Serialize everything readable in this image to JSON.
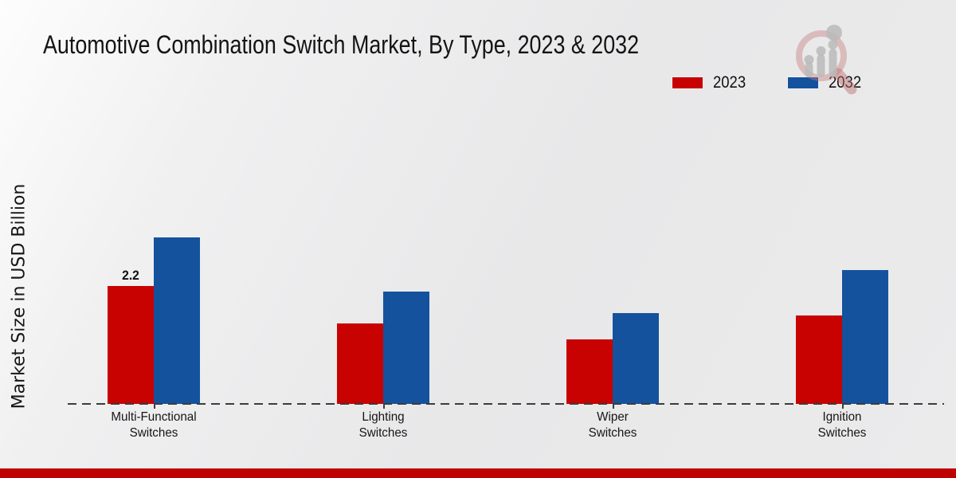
{
  "header": {
    "title": "Automotive Combination Switch Market, By Type, 2023 & 2032"
  },
  "axis": {
    "y_label": "Market Size in USD Billion"
  },
  "legend": {
    "items": [
      {
        "label": "2023",
        "color": "#c80101"
      },
      {
        "label": "2032",
        "color": "#14529e"
      }
    ]
  },
  "watermark": {
    "icon": "magnifier-growth-chart-logo"
  },
  "footer": {
    "accent_color": "#c00101"
  },
  "colors": {
    "series_2023": "#c80101",
    "series_2032": "#14529e",
    "axis_dash": "#3c3c3c",
    "background": "#eaeaea"
  },
  "chart_data": {
    "type": "bar",
    "title": "Automotive Combination Switch Market, By Type, 2023 & 2032",
    "xlabel": "",
    "ylabel": "Market Size in USD Billion",
    "categories": [
      "Multi-Functional Switches",
      "Lighting Switches",
      "Wiper Switches",
      "Ignition Switches"
    ],
    "category_label_lines": [
      [
        "Multi-Functional",
        "Switches"
      ],
      [
        "Lighting",
        "Switches"
      ],
      [
        "Wiper",
        "Switches"
      ],
      [
        "Ignition",
        "Switches"
      ]
    ],
    "series": [
      {
        "name": "2023",
        "color": "#c80101",
        "values": [
          2.2,
          1.5,
          1.2,
          1.65
        ]
      },
      {
        "name": "2032",
        "color": "#14529e",
        "values": [
          3.1,
          2.1,
          1.7,
          2.5
        ]
      }
    ],
    "data_labels": [
      {
        "series": "2023",
        "category": "Multi-Functional Switches",
        "text": "2.2"
      }
    ],
    "ylim": [
      0,
      3.6
    ],
    "grid": false,
    "legend_position": "top-right",
    "baseline_style": "dashed"
  }
}
